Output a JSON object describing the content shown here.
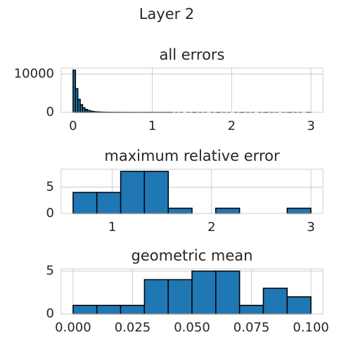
{
  "title": "Layer 2",
  "chart_data": [
    {
      "type": "histogram",
      "title": "all errors",
      "color": "#1f77b4",
      "edgecolor": "#000000",
      "grid": true,
      "bins": [
        0,
        0.03,
        0.06,
        0.09,
        0.12,
        0.15,
        0.18,
        0.21,
        0.24,
        0.27,
        0.3,
        0.33,
        0.36,
        0.39,
        0.42,
        0.45,
        0.48,
        0.51,
        0.54,
        0.57,
        0.6,
        0.63,
        0.66,
        0.69,
        0.72,
        0.75,
        0.78,
        0.81,
        0.84,
        0.87,
        0.9,
        0.93,
        0.96,
        0.99,
        1.02,
        1.05,
        1.08,
        1.11,
        1.14,
        1.17,
        1.2,
        1.23,
        1.26,
        1.29,
        1.32,
        1.35,
        1.38,
        1.41,
        1.44,
        1.47,
        1.5,
        1.53,
        1.56,
        1.59,
        1.62,
        1.65,
        1.68,
        1.71,
        1.74,
        1.77,
        1.8,
        1.83,
        1.86,
        1.89,
        1.92,
        1.95,
        1.98,
        2.01,
        2.04,
        2.07,
        2.1,
        2.13,
        2.16,
        2.19,
        2.22,
        2.25,
        2.28,
        2.31,
        2.34,
        2.37,
        2.4,
        2.43,
        2.46,
        2.49,
        2.52,
        2.55,
        2.58,
        2.61,
        2.64,
        2.67,
        2.7,
        2.73,
        2.76,
        2.79,
        2.82,
        2.85,
        2.88,
        2.91,
        2.94,
        2.97,
        3
      ],
      "values": [
        11000,
        6200,
        3400,
        2000,
        1200,
        750,
        500,
        330,
        230,
        160,
        120,
        90,
        70,
        55,
        45,
        35,
        30,
        25,
        20,
        15,
        12,
        10,
        8,
        7,
        6,
        5,
        4,
        4,
        3,
        3,
        3,
        2,
        2,
        2,
        2,
        2,
        1,
        1,
        1,
        1,
        1,
        1,
        0,
        1,
        0,
        1,
        0,
        0,
        1,
        0,
        1,
        1,
        0,
        1,
        0,
        1,
        0,
        0,
        1,
        0,
        1,
        1,
        0,
        1,
        0,
        1,
        0,
        0,
        1,
        0,
        1,
        1,
        0,
        1,
        0,
        1,
        0,
        0,
        1,
        0,
        1,
        1,
        0,
        1,
        0,
        1,
        0,
        0,
        1,
        0,
        1,
        1,
        0,
        1,
        0,
        1,
        0,
        0,
        1,
        1
      ],
      "xlim": [
        -0.15,
        3.15
      ],
      "ylim": [
        0,
        11550
      ],
      "xticks": [
        0,
        1,
        2,
        3
      ],
      "yticks": [
        0,
        10000
      ]
    },
    {
      "type": "histogram",
      "title": "maximum relative error",
      "color": "#1f77b4",
      "edgecolor": "#000000",
      "grid": true,
      "bins": [
        0.606,
        0.845,
        1.085,
        1.324,
        1.564,
        1.803,
        2.042,
        2.282,
        2.521,
        2.761,
        3.0
      ],
      "values": [
        4,
        4,
        8,
        8,
        1,
        0,
        1,
        0,
        0,
        1
      ],
      "xlim": [
        0.486,
        3.12
      ],
      "ylim": [
        0,
        8.4
      ],
      "xticks": [
        1,
        2,
        3
      ],
      "yticks": [
        0,
        5
      ]
    },
    {
      "type": "histogram",
      "title": "geometric mean",
      "color": "#1f77b4",
      "edgecolor": "#000000",
      "grid": true,
      "bins": [
        0,
        0.01,
        0.02,
        0.03,
        0.04,
        0.05,
        0.06,
        0.07,
        0.08,
        0.09,
        0.1
      ],
      "values": [
        1,
        1,
        1,
        4,
        4,
        5,
        5,
        1,
        3,
        2
      ],
      "xlim": [
        -0.005,
        0.105
      ],
      "ylim": [
        0,
        5.25
      ],
      "xticks": [
        {
          "value": 0,
          "label": "0.000"
        },
        {
          "value": 0.025,
          "label": "0.025"
        },
        {
          "value": 0.05,
          "label": "0.050"
        },
        {
          "value": 0.075,
          "label": "0.075"
        },
        {
          "value": 0.1,
          "label": "0.100"
        }
      ],
      "yticks": [
        0,
        5
      ]
    }
  ]
}
